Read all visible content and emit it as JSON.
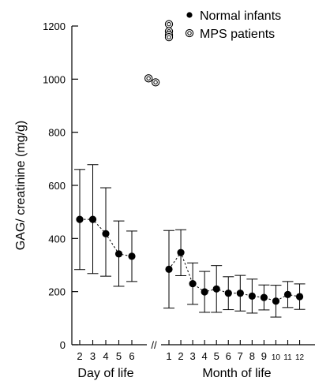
{
  "chart_data": {
    "type": "scatter",
    "title": "",
    "ylabel": "GAG/ creatinine (mg/g)",
    "ylim": [
      0,
      1200
    ],
    "yticks": [
      0,
      200,
      400,
      600,
      800,
      1000,
      1200
    ],
    "grid": false,
    "legend_position": "top-right",
    "axis_break": "//",
    "x_groups": [
      {
        "label": "Day of life",
        "ticks": [
          "2",
          "3",
          "4",
          "5",
          "6"
        ]
      },
      {
        "label": "Month of life",
        "ticks": [
          "1",
          "2",
          "3",
          "4",
          "5",
          "6",
          "7",
          "8",
          "9",
          "10",
          "11",
          "12"
        ]
      }
    ],
    "series": [
      {
        "name": "Normal infants",
        "marker": "filled-circle",
        "color": "#000000",
        "connected": "dashed",
        "segments": [
          {
            "group": 0,
            "points": [
              {
                "x": "2",
                "y": 472,
                "ylow": 283,
                "yhigh": 660
              },
              {
                "x": "3",
                "y": 472,
                "ylow": 268,
                "yhigh": 678
              },
              {
                "x": "4",
                "y": 418,
                "ylow": 258,
                "yhigh": 591
              },
              {
                "x": "5",
                "y": 342,
                "ylow": 220,
                "yhigh": 466
              },
              {
                "x": "6",
                "y": 333,
                "ylow": 238,
                "yhigh": 428
              }
            ]
          },
          {
            "group": 1,
            "points": [
              {
                "x": "1",
                "y": 284,
                "ylow": 138,
                "yhigh": 430
              },
              {
                "x": "2",
                "y": 347,
                "ylow": 260,
                "yhigh": 433
              },
              {
                "x": "3",
                "y": 230,
                "ylow": 152,
                "yhigh": 308
              },
              {
                "x": "4",
                "y": 199,
                "ylow": 122,
                "yhigh": 276
              },
              {
                "x": "5",
                "y": 210,
                "ylow": 122,
                "yhigh": 298
              },
              {
                "x": "6",
                "y": 194,
                "ylow": 132,
                "yhigh": 256
              },
              {
                "x": "7",
                "y": 194,
                "ylow": 127,
                "yhigh": 261
              },
              {
                "x": "8",
                "y": 183,
                "ylow": 119,
                "yhigh": 247
              },
              {
                "x": "9",
                "y": 178,
                "ylow": 131,
                "yhigh": 225
              },
              {
                "x": "10",
                "y": 164,
                "ylow": 104,
                "yhigh": 224
              },
              {
                "x": "11",
                "y": 189,
                "ylow": 140,
                "yhigh": 238
              },
              {
                "x": "12",
                "y": 181,
                "ylow": 133,
                "yhigh": 229
              }
            ]
          }
        ]
      },
      {
        "name": "MPS patients",
        "marker": "double-open-circle",
        "color": "#000000",
        "connected": "none",
        "points": [
          {
            "x_between": "6|1",
            "offset": 0.45,
            "y": 1003
          },
          {
            "x_between": "6|1",
            "offset": 0.64,
            "y": 988
          },
          {
            "group": 1,
            "x": "1",
            "y": 1207
          },
          {
            "group": 1,
            "x": "1",
            "y": 1180
          },
          {
            "group": 1,
            "x": "1",
            "y": 1166
          },
          {
            "group": 1,
            "x": "1",
            "y": 1158
          }
        ]
      }
    ]
  }
}
